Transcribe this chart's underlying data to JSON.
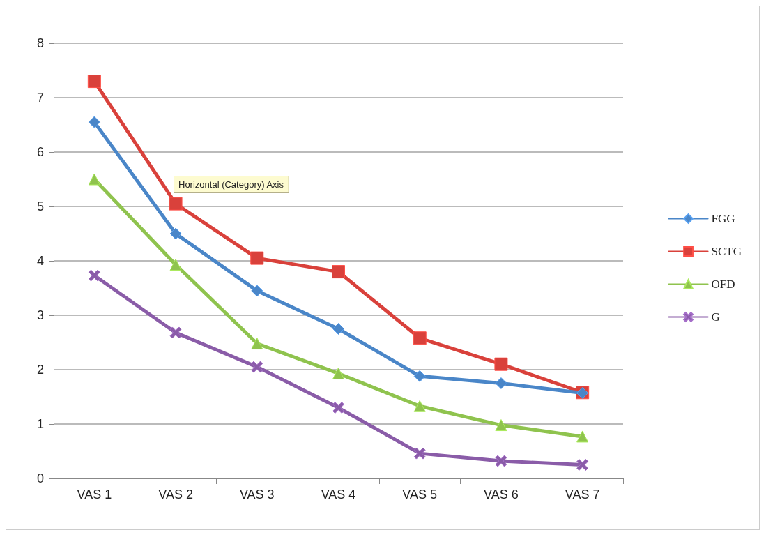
{
  "chart_data": {
    "type": "line",
    "categories": [
      "VAS 1",
      "VAS 2",
      "VAS 3",
      "VAS 4",
      "VAS 5",
      "VAS 6",
      "VAS 7"
    ],
    "series": [
      {
        "name": "FGG",
        "color": "#4a86c8",
        "marker": "diamond",
        "values": [
          6.55,
          4.5,
          3.45,
          2.75,
          1.88,
          1.75,
          1.57
        ]
      },
      {
        "name": "SCTG",
        "color": "#d9413b",
        "marker": "square",
        "values": [
          7.3,
          5.05,
          4.05,
          3.8,
          2.58,
          2.1,
          1.58
        ]
      },
      {
        "name": "OFD",
        "color": "#8fc34e",
        "marker": "triangle",
        "values": [
          5.5,
          3.93,
          2.48,
          1.93,
          1.33,
          0.98,
          0.77
        ]
      },
      {
        "name": "G",
        "color": "#8a5ca8",
        "marker": "cross",
        "values": [
          3.73,
          2.68,
          2.05,
          1.3,
          0.46,
          0.32,
          0.25
        ]
      }
    ],
    "ylim": [
      0,
      8
    ],
    "yticks": [
      0,
      1,
      2,
      3,
      4,
      5,
      6,
      7,
      8
    ],
    "grid": "y",
    "legend": "right",
    "line_style": "solid",
    "annotations": [
      "Horizontal (Category) Axis"
    ]
  }
}
